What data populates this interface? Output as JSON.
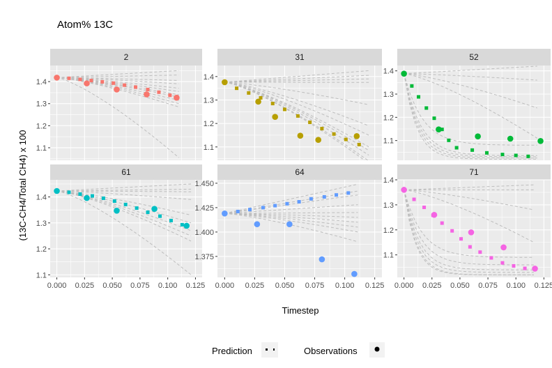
{
  "chart_data": {
    "type": "scatter",
    "title": "Atom% 13C",
    "xlabel": "Timestep",
    "ylabel": "(13C-CH4/Total CH4) x 100",
    "xlim": [
      -0.006,
      0.131
    ],
    "x_ticks": [
      "0.000",
      "0.025",
      "0.050",
      "0.075",
      "0.100",
      "0.125"
    ],
    "x_tick_values": [
      0,
      0.025,
      0.05,
      0.075,
      0.1,
      0.125
    ],
    "grid": true,
    "legend": {
      "position": "bottom",
      "entries": [
        {
          "label": "Prediction",
          "key": "dotted-square"
        },
        {
          "label": "Observations",
          "key": "point"
        }
      ]
    },
    "panels": [
      {
        "label": "2",
        "color": "#F8766D",
        "ylim": [
          1.043,
          1.473
        ],
        "y_ticks": [
          "1.1",
          "1.2",
          "1.3",
          "1.4"
        ],
        "y_tick_values": [
          1.1,
          1.2,
          1.3,
          1.4
        ],
        "observations": {
          "x": [
            0,
            0.027,
            0.054,
            0.081,
            0.108
          ],
          "y": [
            1.418,
            1.392,
            1.364,
            1.342,
            1.327
          ]
        },
        "prediction": {
          "x": [
            0,
            0.011,
            0.021,
            0.031,
            0.041,
            0.051,
            0.061,
            0.071,
            0.082,
            0.092,
            0.102
          ],
          "y": [
            1.418,
            1.415,
            1.41,
            1.405,
            1.399,
            1.393,
            1.384,
            1.375,
            1.364,
            1.352,
            1.338
          ]
        },
        "ensemble_end": [
          1.45,
          1.43,
          1.405,
          1.39,
          1.37,
          1.355,
          1.34,
          1.33,
          1.315,
          1.3,
          1.285,
          1.055
        ]
      },
      {
        "label": "31",
        "color": "#B79F00",
        "ylim": [
          1.043,
          1.447
        ],
        "y_ticks": [
          "1.1",
          "1.2",
          "1.3",
          "1.4"
        ],
        "y_tick_values": [
          1.1,
          1.2,
          1.3,
          1.4
        ],
        "observations": {
          "x": [
            0,
            0.028,
            0.042,
            0.063,
            0.078,
            0.11
          ],
          "y": [
            1.376,
            1.293,
            1.228,
            1.148,
            1.13,
            1.146
          ]
        },
        "prediction": {
          "x": [
            0,
            0.01,
            0.02,
            0.03,
            0.04,
            0.05,
            0.061,
            0.071,
            0.081,
            0.091,
            0.101,
            0.112
          ],
          "y": [
            1.376,
            1.35,
            1.33,
            1.309,
            1.285,
            1.26,
            1.232,
            1.205,
            1.178,
            1.155,
            1.132,
            1.11
          ]
        },
        "ensemble_end": [
          1.425,
          1.405,
          1.39,
          1.375,
          1.28,
          1.19,
          1.15,
          1.1,
          1.085,
          1.065,
          1.04,
          1.03
        ]
      },
      {
        "label": "52",
        "color": "#00BA38",
        "ylim": [
          1.015,
          1.423
        ],
        "y_ticks": [
          "1.1",
          "1.2",
          "1.3",
          "1.4"
        ],
        "y_tick_values": [
          1.1,
          1.2,
          1.3,
          1.4
        ],
        "observations": {
          "x": [
            0,
            0.031,
            0.066,
            0.095,
            0.122
          ],
          "y": [
            1.388,
            1.148,
            1.118,
            1.108,
            1.098
          ]
        },
        "prediction": {
          "x": [
            0,
            0.007,
            0.013,
            0.02,
            0.027,
            0.034,
            0.04,
            0.047,
            0.061,
            0.074,
            0.088,
            0.1,
            0.111
          ],
          "y": [
            1.388,
            1.335,
            1.288,
            1.24,
            1.196,
            1.148,
            1.101,
            1.069,
            1.059,
            1.047,
            1.04,
            1.036,
            1.032
          ]
        },
        "ensemble_end": [
          1.42,
          1.36,
          1.24,
          1.11,
          1.08,
          1.035,
          1.03,
          1.025,
          1.02
        ]
      },
      {
        "label": "61",
        "color": "#00BFC4",
        "ylim": [
          1.09,
          1.466
        ],
        "y_ticks": [
          "1.1",
          "1.2",
          "1.3",
          "1.4"
        ],
        "y_tick_values": [
          1.1,
          1.2,
          1.3,
          1.4
        ],
        "observations": {
          "x": [
            0,
            0.027,
            0.054,
            0.088,
            0.117
          ],
          "y": [
            1.423,
            1.396,
            1.347,
            1.354,
            1.289
          ]
        },
        "prediction": {
          "x": [
            0,
            0.011,
            0.021,
            0.032,
            0.042,
            0.052,
            0.062,
            0.072,
            0.082,
            0.093,
            0.103,
            0.113
          ],
          "y": [
            1.423,
            1.418,
            1.411,
            1.404,
            1.395,
            1.384,
            1.371,
            1.357,
            1.341,
            1.326,
            1.309,
            1.293
          ]
        },
        "ensemble_end": [
          1.45,
          1.43,
          1.42,
          1.39,
          1.33,
          1.3,
          1.27,
          1.25,
          1.23,
          1.1
        ]
      },
      {
        "label": "64",
        "color": "#619CFF",
        "ylim": [
          1.3535,
          1.4535
        ],
        "y_ticks": [
          "1.375",
          "1.400",
          "1.425",
          "1.450"
        ],
        "y_tick_values": [
          1.375,
          1.4,
          1.425,
          1.45
        ],
        "observations": {
          "x": [
            0,
            0.027,
            0.054,
            0.081,
            0.108
          ],
          "y": [
            1.419,
            1.408,
            1.408,
            1.372,
            1.357
          ]
        },
        "prediction": {
          "x": [
            0,
            0.011,
            0.021,
            0.032,
            0.042,
            0.052,
            0.062,
            0.072,
            0.083,
            0.093,
            0.103
          ],
          "y": [
            1.419,
            1.421,
            1.423,
            1.425,
            1.427,
            1.429,
            1.431,
            1.434,
            1.436,
            1.438,
            1.44
          ]
        },
        "ensemble_end": [
          1.449,
          1.442,
          1.438,
          1.428,
          1.42,
          1.415,
          1.41,
          1.405,
          1.4,
          1.39
        ]
      },
      {
        "label": "71",
        "color": "#F564E3",
        "ylim": [
          1.01,
          1.4
        ],
        "y_ticks": [
          "1.1",
          "1.2",
          "1.3",
          "1.4"
        ],
        "y_tick_values": [
          1.1,
          1.2,
          1.3,
          1.4
        ],
        "observations": {
          "x": [
            0,
            0.027,
            0.06,
            0.089,
            0.117
          ],
          "y": [
            1.36,
            1.26,
            1.19,
            1.13,
            1.045
          ]
        },
        "prediction": {
          "x": [
            0,
            0.009,
            0.018,
            0.026,
            0.034,
            0.043,
            0.051,
            0.059,
            0.068,
            0.078,
            0.088,
            0.098,
            0.108
          ],
          "y": [
            1.36,
            1.322,
            1.29,
            1.258,
            1.227,
            1.196,
            1.164,
            1.132,
            1.111,
            1.088,
            1.068,
            1.056,
            1.046
          ]
        },
        "ensemble_end": [
          1.38,
          1.36,
          1.28,
          1.15,
          1.09,
          1.06,
          1.04,
          1.03,
          1.02,
          1.02
        ]
      }
    ]
  }
}
